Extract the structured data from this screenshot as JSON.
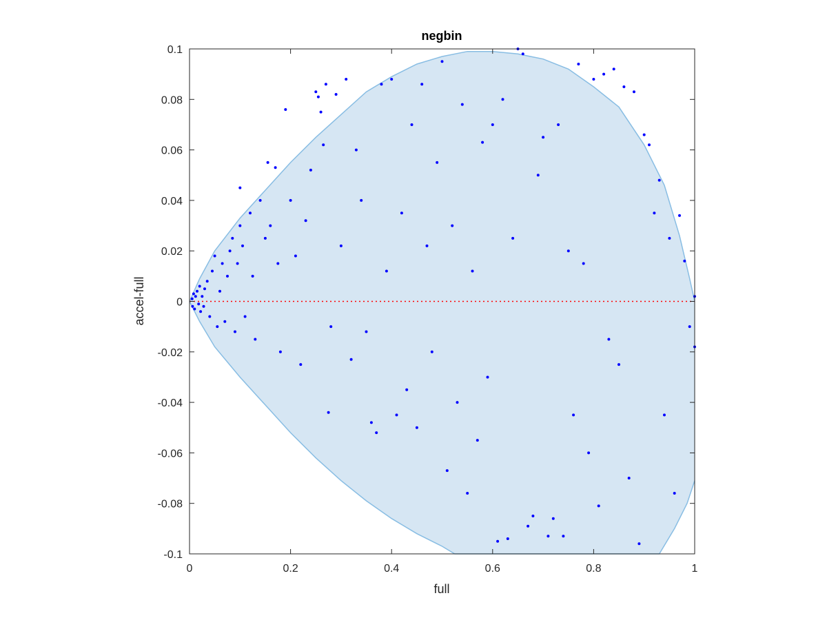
{
  "chart_data": {
    "type": "scatter",
    "title": "negbin",
    "xlabel": "full",
    "ylabel": "accel-full",
    "xlim": [
      0,
      1
    ],
    "ylim": [
      -0.1,
      0.1
    ],
    "x_ticks": [
      0,
      0.2,
      0.4,
      0.6,
      0.8,
      1
    ],
    "x_tick_labels": [
      "0",
      "0.2",
      "0.4",
      "0.6",
      "0.8",
      "1"
    ],
    "y_ticks": [
      -0.1,
      -0.08,
      -0.06,
      -0.04,
      -0.02,
      0,
      0.02,
      0.04,
      0.06,
      0.08,
      0.1
    ],
    "y_tick_labels": [
      "-0.1",
      "-0.08",
      "-0.06",
      "-0.04",
      "-0.02",
      "0",
      "0.02",
      "0.04",
      "0.06",
      "0.08",
      "0.1"
    ],
    "grid": false,
    "reference_line": {
      "y": 0,
      "style": "dotted",
      "color": "#ff0000"
    },
    "region": {
      "fill": "#d6e6f3",
      "stroke": "#88bde3",
      "upper": [
        [
          0,
          0
        ],
        [
          0.02,
          0.009
        ],
        [
          0.05,
          0.02
        ],
        [
          0.1,
          0.033
        ],
        [
          0.15,
          0.044
        ],
        [
          0.2,
          0.055
        ],
        [
          0.25,
          0.065
        ],
        [
          0.3,
          0.074
        ],
        [
          0.35,
          0.083
        ],
        [
          0.4,
          0.089
        ],
        [
          0.45,
          0.094
        ],
        [
          0.5,
          0.097
        ],
        [
          0.55,
          0.099
        ],
        [
          0.6,
          0.099
        ],
        [
          0.65,
          0.098
        ],
        [
          0.7,
          0.096
        ],
        [
          0.75,
          0.092
        ],
        [
          0.8,
          0.085
        ],
        [
          0.85,
          0.077
        ],
        [
          0.9,
          0.062
        ],
        [
          0.94,
          0.046
        ],
        [
          0.97,
          0.026
        ],
        [
          0.99,
          0.009
        ],
        [
          1,
          0
        ]
      ],
      "lower": [
        [
          0,
          0
        ],
        [
          0.02,
          -0.008
        ],
        [
          0.05,
          -0.018
        ],
        [
          0.1,
          -0.03
        ],
        [
          0.15,
          -0.041
        ],
        [
          0.2,
          -0.052
        ],
        [
          0.25,
          -0.062
        ],
        [
          0.3,
          -0.071
        ],
        [
          0.35,
          -0.079
        ],
        [
          0.4,
          -0.086
        ],
        [
          0.45,
          -0.092
        ],
        [
          0.5,
          -0.097
        ],
        [
          0.525,
          -0.1
        ],
        [
          0.93,
          -0.1
        ],
        [
          0.96,
          -0.09
        ],
        [
          0.985,
          -0.08
        ],
        [
          1,
          -0.071
        ]
      ]
    },
    "series": [
      {
        "color": "#0000ff",
        "marker": "dot",
        "points": [
          [
            0.005,
            0.001
          ],
          [
            0.006,
            -0.002
          ],
          [
            0.008,
            0.003
          ],
          [
            0.01,
            -0.003
          ],
          [
            0.012,
            0.002
          ],
          [
            0.015,
            0.004
          ],
          [
            0.018,
            -0.001
          ],
          [
            0.02,
            0.006
          ],
          [
            0.022,
            -0.004
          ],
          [
            0.025,
            0.002
          ],
          [
            0.028,
            -0.002
          ],
          [
            0.03,
            0.005
          ],
          [
            0.035,
            0.008
          ],
          [
            0.04,
            -0.006
          ],
          [
            0.045,
            0.012
          ],
          [
            0.05,
            0.018
          ],
          [
            0.055,
            -0.01
          ],
          [
            0.06,
            0.004
          ],
          [
            0.065,
            0.015
          ],
          [
            0.07,
            -0.008
          ],
          [
            0.075,
            0.01
          ],
          [
            0.08,
            0.02
          ],
          [
            0.085,
            0.025
          ],
          [
            0.09,
            -0.012
          ],
          [
            0.095,
            0.015
          ],
          [
            0.1,
            0.03
          ],
          [
            0.1,
            0.045
          ],
          [
            0.105,
            0.022
          ],
          [
            0.11,
            -0.006
          ],
          [
            0.12,
            0.035
          ],
          [
            0.125,
            0.01
          ],
          [
            0.13,
            -0.015
          ],
          [
            0.14,
            0.04
          ],
          [
            0.15,
            0.025
          ],
          [
            0.155,
            0.055
          ],
          [
            0.16,
            0.03
          ],
          [
            0.17,
            0.053
          ],
          [
            0.175,
            0.015
          ],
          [
            0.18,
            -0.02
          ],
          [
            0.19,
            0.076
          ],
          [
            0.2,
            0.04
          ],
          [
            0.21,
            0.018
          ],
          [
            0.22,
            -0.025
          ],
          [
            0.23,
            0.032
          ],
          [
            0.24,
            0.052
          ],
          [
            0.25,
            0.083
          ],
          [
            0.255,
            0.081
          ],
          [
            0.26,
            0.075
          ],
          [
            0.265,
            0.062
          ],
          [
            0.27,
            0.086
          ],
          [
            0.275,
            -0.044
          ],
          [
            0.28,
            -0.01
          ],
          [
            0.29,
            0.082
          ],
          [
            0.3,
            0.022
          ],
          [
            0.31,
            0.088
          ],
          [
            0.32,
            -0.023
          ],
          [
            0.33,
            0.06
          ],
          [
            0.34,
            0.04
          ],
          [
            0.35,
            -0.012
          ],
          [
            0.36,
            -0.048
          ],
          [
            0.37,
            -0.052
          ],
          [
            0.38,
            0.086
          ],
          [
            0.39,
            0.012
          ],
          [
            0.4,
            0.088
          ],
          [
            0.41,
            -0.045
          ],
          [
            0.42,
            0.035
          ],
          [
            0.43,
            -0.035
          ],
          [
            0.44,
            0.07
          ],
          [
            0.45,
            -0.05
          ],
          [
            0.46,
            0.086
          ],
          [
            0.47,
            0.022
          ],
          [
            0.48,
            -0.02
          ],
          [
            0.49,
            0.055
          ],
          [
            0.5,
            0.095
          ],
          [
            0.51,
            -0.067
          ],
          [
            0.52,
            0.03
          ],
          [
            0.53,
            -0.04
          ],
          [
            0.54,
            0.078
          ],
          [
            0.55,
            -0.076
          ],
          [
            0.56,
            0.012
          ],
          [
            0.57,
            -0.055
          ],
          [
            0.58,
            0.063
          ],
          [
            0.59,
            -0.03
          ],
          [
            0.6,
            0.07
          ],
          [
            0.61,
            -0.095
          ],
          [
            0.62,
            0.08
          ],
          [
            0.63,
            -0.094
          ],
          [
            0.64,
            0.025
          ],
          [
            0.65,
            0.1
          ],
          [
            0.66,
            0.098
          ],
          [
            0.67,
            -0.089
          ],
          [
            0.68,
            -0.085
          ],
          [
            0.69,
            0.05
          ],
          [
            0.7,
            0.065
          ],
          [
            0.71,
            -0.093
          ],
          [
            0.72,
            -0.086
          ],
          [
            0.73,
            0.07
          ],
          [
            0.74,
            -0.093
          ],
          [
            0.75,
            0.02
          ],
          [
            0.76,
            -0.045
          ],
          [
            0.77,
            0.094
          ],
          [
            0.78,
            0.015
          ],
          [
            0.79,
            -0.06
          ],
          [
            0.8,
            0.088
          ],
          [
            0.81,
            -0.081
          ],
          [
            0.82,
            0.09
          ],
          [
            0.83,
            -0.015
          ],
          [
            0.84,
            0.092
          ],
          [
            0.85,
            -0.025
          ],
          [
            0.86,
            0.085
          ],
          [
            0.87,
            -0.07
          ],
          [
            0.88,
            0.083
          ],
          [
            0.89,
            -0.096
          ],
          [
            0.9,
            0.066
          ],
          [
            0.91,
            0.062
          ],
          [
            0.92,
            0.035
          ],
          [
            0.93,
            0.048
          ],
          [
            0.94,
            -0.045
          ],
          [
            0.95,
            0.025
          ],
          [
            0.96,
            -0.076
          ],
          [
            0.97,
            0.034
          ],
          [
            0.98,
            0.016
          ],
          [
            0.99,
            -0.01
          ],
          [
            1,
            -0.018
          ],
          [
            1,
            0.002
          ]
        ]
      }
    ]
  }
}
